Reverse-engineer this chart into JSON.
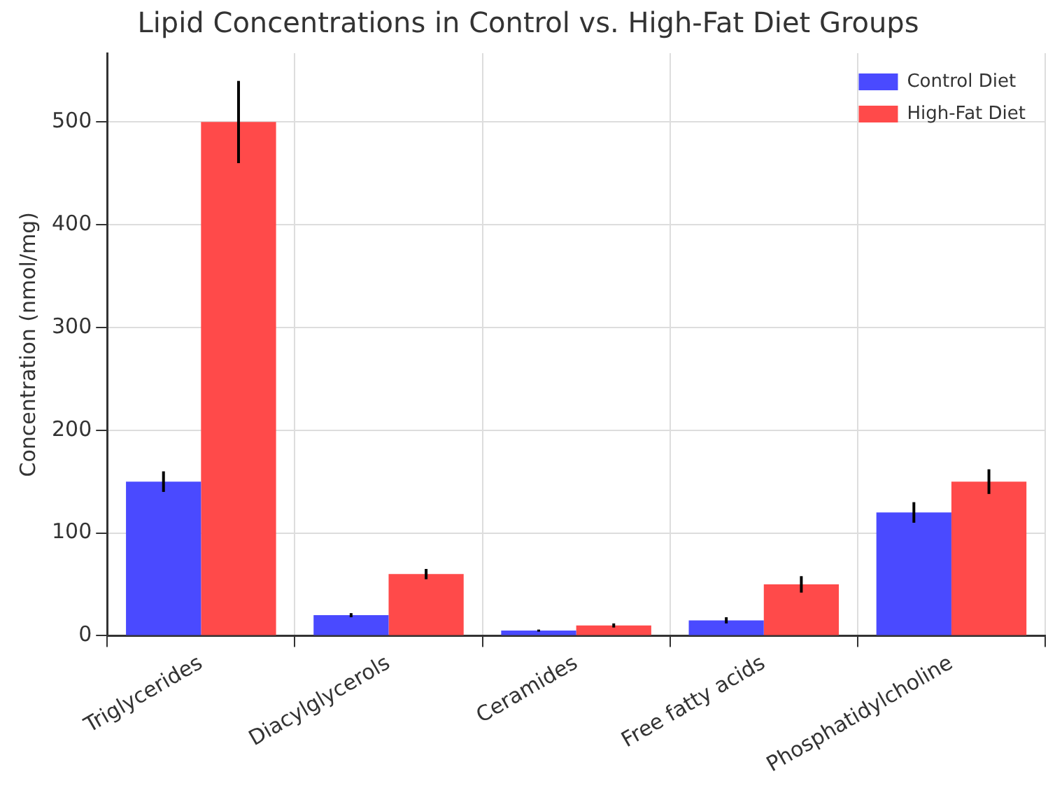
{
  "chart_data": {
    "type": "bar",
    "title": "Lipid Concentrations in Control vs. High-Fat Diet Groups",
    "ylabel": "Concentration (nmol/mg)",
    "categories": [
      "Triglycerides",
      "Diacylglycerols",
      "Ceramides",
      "Free fatty acids",
      "Phosphatidylcholine"
    ],
    "series": [
      {
        "name": "Control Diet",
        "color": "#4a4aff",
        "values": [
          150,
          20,
          5,
          15,
          120
        ],
        "errors": [
          10,
          2,
          1,
          3,
          10
        ]
      },
      {
        "name": "High-Fat Diet",
        "color": "#ff4a4a",
        "values": [
          500,
          60,
          10,
          50,
          150
        ],
        "errors": [
          40,
          5,
          2,
          8,
          12
        ]
      }
    ],
    "ylim": [
      0,
      567
    ],
    "yticks": [
      0,
      100,
      200,
      300,
      400,
      500
    ],
    "grid": true,
    "legend": "top right"
  }
}
